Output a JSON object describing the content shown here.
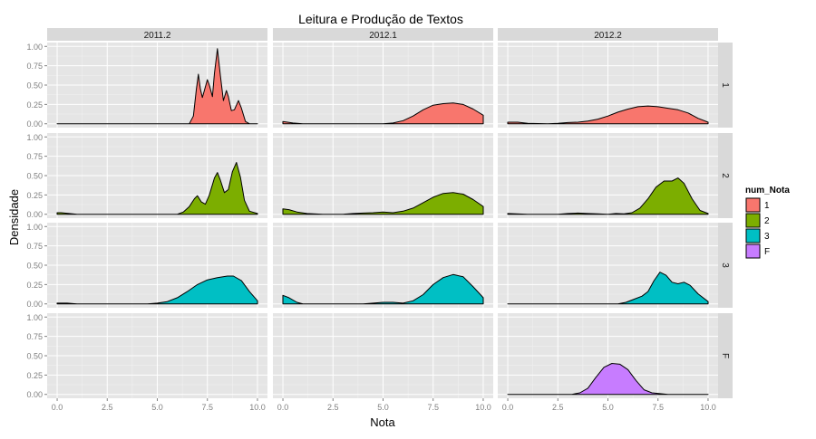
{
  "chart_data": {
    "type": "area",
    "title": "Leitura e Produção de Textos",
    "xlabel": "Nota",
    "ylabel": "Densidade",
    "xlim": [
      -0.5,
      10.5
    ],
    "ylim": [
      -0.05,
      1.05
    ],
    "x_ticks": [
      "0.0",
      "2.5",
      "5.0",
      "7.5",
      "10.0"
    ],
    "x_tick_values": [
      0,
      2.5,
      5,
      7.5,
      10
    ],
    "y_ticks": [
      "0.00",
      "0.25",
      "0.50",
      "0.75",
      "1.00"
    ],
    "y_tick_values": [
      0,
      0.25,
      0.5,
      0.75,
      1
    ],
    "columns": [
      "2011.2",
      "2012.1",
      "2012.2"
    ],
    "rows": [
      "1",
      "2",
      "3",
      "F"
    ],
    "grid": true,
    "legend": {
      "title": "num_Nota",
      "position": "right",
      "entries": [
        {
          "label": "1",
          "color": "#F8766D"
        },
        {
          "label": "2",
          "color": "#7CAE00"
        },
        {
          "label": "3",
          "color": "#00BFC4"
        },
        {
          "label": "F",
          "color": "#C77CFF"
        }
      ]
    },
    "panels": [
      {
        "row": "1",
        "col": "2011.2",
        "points": [
          [
            0,
            0
          ],
          [
            6.6,
            0
          ],
          [
            6.8,
            0.1
          ],
          [
            6.95,
            0.45
          ],
          [
            7.05,
            0.64
          ],
          [
            7.15,
            0.45
          ],
          [
            7.25,
            0.34
          ],
          [
            7.35,
            0.43
          ],
          [
            7.5,
            0.57
          ],
          [
            7.6,
            0.5
          ],
          [
            7.75,
            0.35
          ],
          [
            7.85,
            0.65
          ],
          [
            8.0,
            0.97
          ],
          [
            8.15,
            0.62
          ],
          [
            8.3,
            0.3
          ],
          [
            8.45,
            0.43
          ],
          [
            8.55,
            0.35
          ],
          [
            8.7,
            0.17
          ],
          [
            8.85,
            0.18
          ],
          [
            9.05,
            0.3
          ],
          [
            9.2,
            0.2
          ],
          [
            9.4,
            0.03
          ],
          [
            9.6,
            0
          ],
          [
            10,
            0
          ]
        ]
      },
      {
        "row": "1",
        "col": "2012.1",
        "points": [
          [
            0,
            0.03
          ],
          [
            0.5,
            0.01
          ],
          [
            1,
            0
          ],
          [
            5,
            0
          ],
          [
            5.5,
            0.01
          ],
          [
            6,
            0.04
          ],
          [
            6.5,
            0.1
          ],
          [
            7,
            0.18
          ],
          [
            7.5,
            0.24
          ],
          [
            8,
            0.26
          ],
          [
            8.5,
            0.27
          ],
          [
            9,
            0.25
          ],
          [
            9.5,
            0.19
          ],
          [
            10,
            0.11
          ]
        ]
      },
      {
        "row": "1",
        "col": "2012.2",
        "points": [
          [
            0,
            0.02
          ],
          [
            0.5,
            0.02
          ],
          [
            1,
            0.005
          ],
          [
            2,
            0
          ],
          [
            2.5,
            0.005
          ],
          [
            3,
            0.015
          ],
          [
            3.5,
            0.02
          ],
          [
            4,
            0.035
          ],
          [
            4.5,
            0.06
          ],
          [
            5,
            0.1
          ],
          [
            5.5,
            0.15
          ],
          [
            6,
            0.19
          ],
          [
            6.5,
            0.22
          ],
          [
            7,
            0.23
          ],
          [
            7.5,
            0.22
          ],
          [
            8,
            0.2
          ],
          [
            8.5,
            0.18
          ],
          [
            9,
            0.14
          ],
          [
            9.5,
            0.07
          ],
          [
            10,
            0.02
          ]
        ]
      },
      {
        "row": "2",
        "col": "2011.2",
        "points": [
          [
            0,
            0.02
          ],
          [
            0.2,
            0.02
          ],
          [
            0.6,
            0.01
          ],
          [
            1,
            0
          ],
          [
            6,
            0
          ],
          [
            6.3,
            0.03
          ],
          [
            6.6,
            0.1
          ],
          [
            6.85,
            0.2
          ],
          [
            7.0,
            0.24
          ],
          [
            7.2,
            0.16
          ],
          [
            7.4,
            0.13
          ],
          [
            7.6,
            0.25
          ],
          [
            7.85,
            0.47
          ],
          [
            8.0,
            0.54
          ],
          [
            8.15,
            0.44
          ],
          [
            8.35,
            0.28
          ],
          [
            8.55,
            0.32
          ],
          [
            8.75,
            0.55
          ],
          [
            8.95,
            0.67
          ],
          [
            9.15,
            0.48
          ],
          [
            9.35,
            0.18
          ],
          [
            9.6,
            0.04
          ],
          [
            10,
            0.01
          ]
        ]
      },
      {
        "row": "2",
        "col": "2012.1",
        "points": [
          [
            0,
            0.07
          ],
          [
            0.3,
            0.06
          ],
          [
            0.7,
            0.03
          ],
          [
            1.2,
            0.01
          ],
          [
            2,
            0
          ],
          [
            3,
            0
          ],
          [
            3.5,
            0.01
          ],
          [
            4,
            0.015
          ],
          [
            4.5,
            0.02
          ],
          [
            5,
            0.03
          ],
          [
            5.5,
            0.02
          ],
          [
            6,
            0.04
          ],
          [
            6.5,
            0.08
          ],
          [
            7,
            0.15
          ],
          [
            7.5,
            0.22
          ],
          [
            8,
            0.27
          ],
          [
            8.5,
            0.28
          ],
          [
            9,
            0.26
          ],
          [
            9.5,
            0.19
          ],
          [
            10,
            0.1
          ]
        ]
      },
      {
        "row": "2",
        "col": "2012.2",
        "points": [
          [
            0,
            0.01
          ],
          [
            1,
            0
          ],
          [
            2.5,
            0
          ],
          [
            3,
            0.01
          ],
          [
            3.5,
            0.015
          ],
          [
            4,
            0.01
          ],
          [
            4.5,
            0.005
          ],
          [
            5,
            0
          ],
          [
            5.4,
            0.01
          ],
          [
            5.8,
            0.005
          ],
          [
            6.2,
            0.02
          ],
          [
            6.6,
            0.08
          ],
          [
            7,
            0.2
          ],
          [
            7.4,
            0.35
          ],
          [
            7.8,
            0.43
          ],
          [
            8.2,
            0.43
          ],
          [
            8.5,
            0.47
          ],
          [
            8.8,
            0.4
          ],
          [
            9.2,
            0.2
          ],
          [
            9.6,
            0.05
          ],
          [
            10,
            0.01
          ]
        ]
      },
      {
        "row": "3",
        "col": "2011.2",
        "points": [
          [
            0,
            0.01
          ],
          [
            0.5,
            0.01
          ],
          [
            1,
            0
          ],
          [
            4.5,
            0
          ],
          [
            5,
            0.01
          ],
          [
            5.5,
            0.03
          ],
          [
            6,
            0.08
          ],
          [
            6.5,
            0.16
          ],
          [
            7,
            0.25
          ],
          [
            7.5,
            0.31
          ],
          [
            8,
            0.34
          ],
          [
            8.5,
            0.36
          ],
          [
            8.8,
            0.36
          ],
          [
            9.2,
            0.3
          ],
          [
            9.6,
            0.16
          ],
          [
            10,
            0.04
          ]
        ]
      },
      {
        "row": "3",
        "col": "2012.1",
        "points": [
          [
            0,
            0.11
          ],
          [
            0.3,
            0.08
          ],
          [
            0.7,
            0.02
          ],
          [
            1,
            0
          ],
          [
            4,
            0
          ],
          [
            4.5,
            0.01
          ],
          [
            5,
            0.02
          ],
          [
            5.5,
            0.02
          ],
          [
            6,
            0.01
          ],
          [
            6.5,
            0.04
          ],
          [
            7,
            0.12
          ],
          [
            7.5,
            0.25
          ],
          [
            8,
            0.34
          ],
          [
            8.5,
            0.38
          ],
          [
            9,
            0.35
          ],
          [
            9.5,
            0.22
          ],
          [
            10,
            0.08
          ]
        ]
      },
      {
        "row": "3",
        "col": "2012.2",
        "points": [
          [
            0,
            0
          ],
          [
            5.5,
            0
          ],
          [
            5.9,
            0.02
          ],
          [
            6.3,
            0.06
          ],
          [
            6.7,
            0.1
          ],
          [
            7.0,
            0.16
          ],
          [
            7.3,
            0.3
          ],
          [
            7.6,
            0.41
          ],
          [
            7.9,
            0.37
          ],
          [
            8.2,
            0.28
          ],
          [
            8.5,
            0.26
          ],
          [
            8.8,
            0.28
          ],
          [
            9.1,
            0.24
          ],
          [
            9.5,
            0.13
          ],
          [
            10,
            0.03
          ]
        ]
      },
      {
        "row": "F",
        "col": "2012.2",
        "points": [
          [
            0,
            0
          ],
          [
            3.2,
            0
          ],
          [
            3.6,
            0.02
          ],
          [
            4,
            0.08
          ],
          [
            4.4,
            0.22
          ],
          [
            4.8,
            0.35
          ],
          [
            5.2,
            0.4
          ],
          [
            5.6,
            0.39
          ],
          [
            6,
            0.32
          ],
          [
            6.4,
            0.18
          ],
          [
            6.8,
            0.06
          ],
          [
            7.2,
            0.02
          ],
          [
            7.6,
            0.01
          ],
          [
            8,
            0
          ],
          [
            10,
            0
          ]
        ]
      }
    ]
  }
}
